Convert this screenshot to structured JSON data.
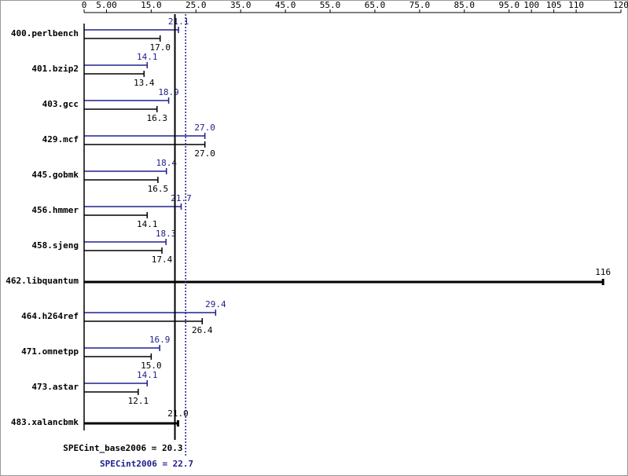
{
  "chart_data": {
    "type": "spec-bar",
    "categories": [
      "400.perlbench",
      "401.bzip2",
      "403.gcc",
      "429.mcf",
      "445.gobmk",
      "456.hmmer",
      "458.sjeng",
      "462.libquantum",
      "464.h264ref",
      "471.omnetpp",
      "473.astar",
      "483.xalancbmk"
    ],
    "series": [
      {
        "color": "#202090",
        "values": [
          21.1,
          14.1,
          18.9,
          27.0,
          18.4,
          21.7,
          18.3,
          null,
          29.4,
          16.9,
          14.1,
          null
        ],
        "value_labels": [
          "21.1",
          "14.1",
          "18.9",
          "27.0",
          "18.4",
          "21.7",
          "18.3",
          null,
          "29.4",
          "16.9",
          "14.1",
          null
        ]
      },
      {
        "color": "#000000",
        "values": [
          17.0,
          13.4,
          16.3,
          27.0,
          16.5,
          14.1,
          17.4,
          116,
          26.4,
          15.0,
          12.1,
          21.0
        ],
        "value_labels": [
          "17.0",
          "13.4",
          "16.3",
          "27.0",
          "16.5",
          "14.1",
          "17.4",
          "116",
          "26.4",
          "15.0",
          "12.1",
          "21.0"
        ]
      }
    ],
    "xlim": [
      0,
      120
    ],
    "xticks": [
      0,
      {
        "value": 5,
        "label": "5.00"
      },
      {
        "value": 15,
        "label": "15.0"
      },
      {
        "value": 25,
        "label": "25.0"
      },
      {
        "value": 35,
        "label": "35.0"
      },
      {
        "value": 45,
        "label": "45.0"
      },
      {
        "value": 55,
        "label": "55.0"
      },
      {
        "value": 65,
        "label": "65.0"
      },
      {
        "value": 75,
        "label": "75.0"
      },
      {
        "value": 85,
        "label": "85.0"
      },
      {
        "value": 95,
        "label": "95.0"
      },
      100,
      105,
      110,
      120
    ],
    "reference_lines": [
      {
        "label": "SPECint_base2006 = 20.3",
        "value": 20.3,
        "color": "#000000",
        "style": "solid"
      },
      {
        "label": "SPECint2006 = 22.7",
        "value": 22.7,
        "color": "#202090",
        "style": "dotted"
      }
    ]
  }
}
